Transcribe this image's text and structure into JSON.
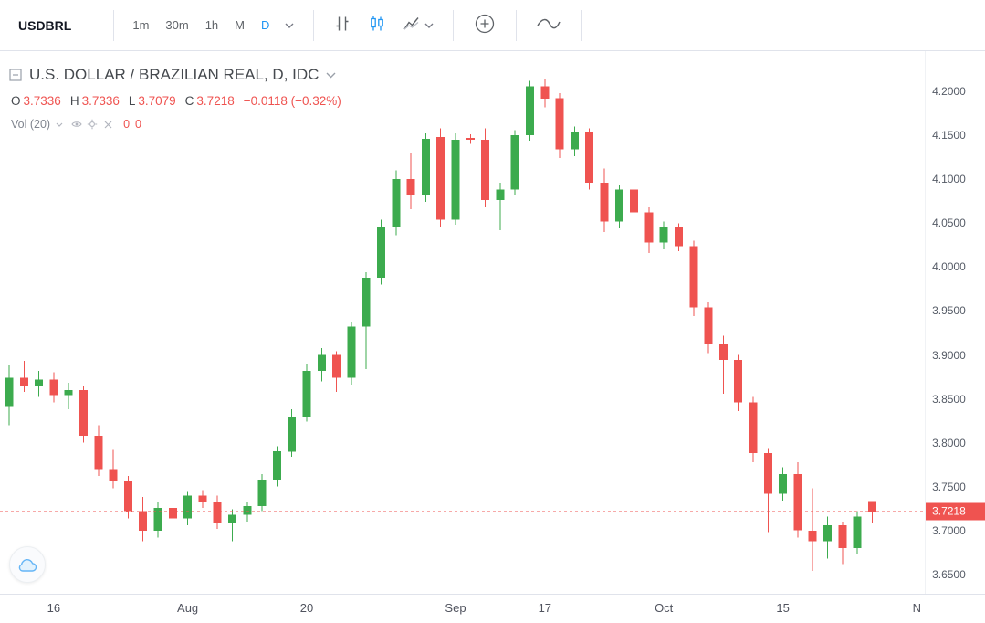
{
  "toolbar": {
    "symbol": "USDBRL",
    "intervals": [
      {
        "label": "1m",
        "active": false
      },
      {
        "label": "30m",
        "active": false
      },
      {
        "label": "1h",
        "active": false
      },
      {
        "label": "M",
        "active": false
      },
      {
        "label": "D",
        "active": true
      }
    ],
    "accent_color": "#2196f3"
  },
  "chart": {
    "title": "U.S. DOLLAR / BRAZILIAN REAL, D, IDC",
    "ohlc": {
      "open_label": "O",
      "open": "3.7336",
      "high_label": "H",
      "high": "3.7336",
      "low_label": "L",
      "low": "3.7079",
      "close_label": "C",
      "close": "3.7218",
      "change": "−0.0118 (−0.32%)"
    },
    "indicator": {
      "label": "Vol (20)",
      "value1": "0",
      "value2": "0"
    },
    "last_price": "3.7218"
  },
  "chart_data": {
    "type": "candlestick",
    "title": "U.S. DOLLAR / BRAZILIAN REAL, D, IDC",
    "symbol": "USDBRL",
    "interval": "D",
    "exchange": "IDC",
    "y_ticks": [
      "4.2000",
      "4.1500",
      "4.1000",
      "4.0500",
      "4.0000",
      "3.9500",
      "3.9000",
      "3.8500",
      "3.8000",
      "3.7500",
      "3.7000",
      "3.6500"
    ],
    "y_range": [
      3.628,
      4.2458
    ],
    "x_labels": [
      {
        "label": "16",
        "index": 3
      },
      {
        "label": "Aug",
        "index": 12
      },
      {
        "label": "20",
        "index": 20
      },
      {
        "label": "Sep",
        "index": 30
      },
      {
        "label": "17",
        "index": 36
      },
      {
        "label": "Oct",
        "index": 44
      },
      {
        "label": "15",
        "index": 52
      },
      {
        "label": "N",
        "index": 61
      }
    ],
    "candles": [
      [
        3.842,
        3.888,
        3.82,
        3.874
      ],
      [
        3.874,
        3.893,
        3.858,
        3.864
      ],
      [
        3.864,
        3.882,
        3.852,
        3.872
      ],
      [
        3.872,
        3.88,
        3.846,
        3.854
      ],
      [
        3.854,
        3.868,
        3.838,
        3.86
      ],
      [
        3.86,
        3.864,
        3.8,
        3.808
      ],
      [
        3.808,
        3.82,
        3.762,
        3.77
      ],
      [
        3.77,
        3.792,
        3.748,
        3.756
      ],
      [
        3.756,
        3.762,
        3.714,
        3.722
      ],
      [
        3.722,
        3.738,
        3.688,
        3.7
      ],
      [
        3.7,
        3.732,
        3.692,
        3.726
      ],
      [
        3.726,
        3.738,
        3.708,
        3.714
      ],
      [
        3.714,
        3.744,
        3.706,
        3.74
      ],
      [
        3.74,
        3.746,
        3.726,
        3.732
      ],
      [
        3.732,
        3.74,
        3.702,
        3.708
      ],
      [
        3.708,
        3.724,
        3.688,
        3.718
      ],
      [
        3.718,
        3.732,
        3.71,
        3.728
      ],
      [
        3.728,
        3.764,
        3.722,
        3.758
      ],
      [
        3.758,
        3.796,
        3.75,
        3.79
      ],
      [
        3.79,
        3.838,
        3.784,
        3.83
      ],
      [
        3.83,
        3.89,
        3.824,
        3.882
      ],
      [
        3.882,
        3.908,
        3.87,
        3.9
      ],
      [
        3.9,
        3.904,
        3.858,
        3.874
      ],
      [
        3.874,
        3.938,
        3.866,
        3.932
      ],
      [
        3.932,
        3.994,
        3.884,
        3.988
      ],
      [
        3.988,
        4.054,
        3.98,
        4.046
      ],
      [
        4.046,
        4.11,
        4.036,
        4.1
      ],
      [
        4.1,
        4.13,
        4.066,
        4.082
      ],
      [
        4.082,
        4.152,
        4.074,
        4.146
      ],
      [
        4.148,
        4.158,
        4.046,
        4.054
      ],
      [
        4.054,
        4.152,
        4.048,
        4.145
      ],
      [
        4.147,
        4.151,
        4.14,
        4.145
      ],
      [
        4.145,
        4.158,
        4.068,
        4.076
      ],
      [
        4.076,
        4.096,
        4.042,
        4.088
      ],
      [
        4.088,
        4.156,
        4.082,
        4.15
      ],
      [
        4.15,
        4.212,
        4.144,
        4.206
      ],
      [
        4.206,
        4.214,
        4.182,
        4.192
      ],
      [
        4.192,
        4.198,
        4.124,
        4.134
      ],
      [
        4.134,
        4.16,
        4.126,
        4.154
      ],
      [
        4.154,
        4.158,
        4.088,
        4.096
      ],
      [
        4.096,
        4.112,
        4.04,
        4.052
      ],
      [
        4.052,
        4.094,
        4.044,
        4.088
      ],
      [
        4.088,
        4.096,
        4.052,
        4.062
      ],
      [
        4.062,
        4.068,
        4.016,
        4.028
      ],
      [
        4.028,
        4.052,
        4.02,
        4.046
      ],
      [
        4.046,
        4.05,
        4.018,
        4.024
      ],
      [
        4.024,
        4.03,
        3.944,
        3.954
      ],
      [
        3.954,
        3.96,
        3.902,
        3.912
      ],
      [
        3.912,
        3.922,
        3.856,
        3.894
      ],
      [
        3.894,
        3.9,
        3.836,
        3.846
      ],
      [
        3.846,
        3.852,
        3.778,
        3.788
      ],
      [
        3.788,
        3.794,
        3.698,
        3.742
      ],
      [
        3.742,
        3.772,
        3.734,
        3.764
      ],
      [
        3.764,
        3.778,
        3.692,
        3.7
      ],
      [
        3.7,
        3.748,
        3.654,
        3.688
      ],
      [
        3.688,
        3.716,
        3.668,
        3.706
      ],
      [
        3.706,
        3.71,
        3.662,
        3.68
      ],
      [
        3.68,
        3.722,
        3.674,
        3.716
      ],
      [
        3.7336,
        3.7336,
        3.7079,
        3.7218
      ]
    ],
    "last_price": 3.7218,
    "colors": {
      "up": "#3cab4e",
      "down": "#ef5350",
      "last_price_line": "#ef5350"
    },
    "layout": {
      "x_start": 10,
      "x_step": 16.3,
      "candle_width": 9,
      "grid": false,
      "legend": "none",
      "price_axis": "right"
    }
  }
}
